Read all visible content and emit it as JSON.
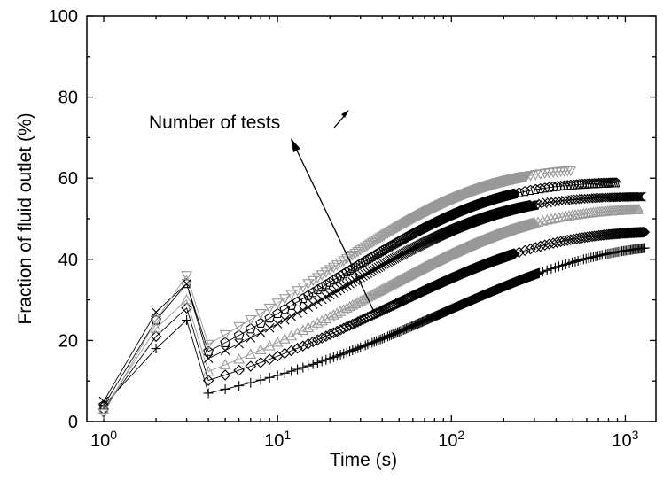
{
  "chart_data": {
    "type": "scatter",
    "title": "",
    "xlabel": "Time (s)",
    "ylabel": "Fraction of fluid outlet (%)",
    "x_scale": "log",
    "xlim": [
      0.8,
      1500
    ],
    "ylim": [
      0,
      100
    ],
    "x_ticks": [
      {
        "value": 1,
        "base": "10",
        "exp": "0"
      },
      {
        "value": 10,
        "base": "10",
        "exp": "1"
      },
      {
        "value": 100,
        "base": "10",
        "exp": "2"
      },
      {
        "value": 1000,
        "base": "10",
        "exp": "3"
      }
    ],
    "y_ticks": [
      "0",
      "20",
      "40",
      "60",
      "80",
      "100"
    ],
    "grid": false,
    "annotation": "Number of tests",
    "series": [
      {
        "marker": "plus",
        "color": "#000000",
        "ymax": 44,
        "k": 0.1,
        "y1": 4,
        "y2": 18,
        "y3": 25,
        "xmax": 1300,
        "xdense": 320
      },
      {
        "marker": "diamond",
        "color": "#000000",
        "ymax": 47,
        "k": 0.14,
        "y1": 3,
        "y2": 21,
        "y3": 28,
        "xmax": 1300,
        "xdense": 230
      },
      {
        "marker": "triangle-up",
        "color": "#999999",
        "ymax": 52.5,
        "k": 0.155,
        "y1": 3,
        "y2": 23,
        "y3": 30,
        "xmax": 1200,
        "xdense": 300
      },
      {
        "marker": "x",
        "color": "#000000",
        "ymax": 55.5,
        "k": 0.19,
        "y1": 5,
        "y2": 27,
        "y3": 34,
        "xmax": 1250,
        "xdense": 300
      },
      {
        "marker": "pentagon",
        "color": "#000000",
        "ymax": 59,
        "k": 0.2,
        "y1": 4,
        "y2": 25,
        "y3": 34,
        "xmax": 900,
        "xdense": 230
      },
      {
        "marker": "triangle-down",
        "color": "#999999",
        "ymax": 62.5,
        "k": 0.21,
        "y1": 2,
        "y2": 25,
        "y3": 36,
        "xmax": 490,
        "xdense": 270
      }
    ]
  }
}
